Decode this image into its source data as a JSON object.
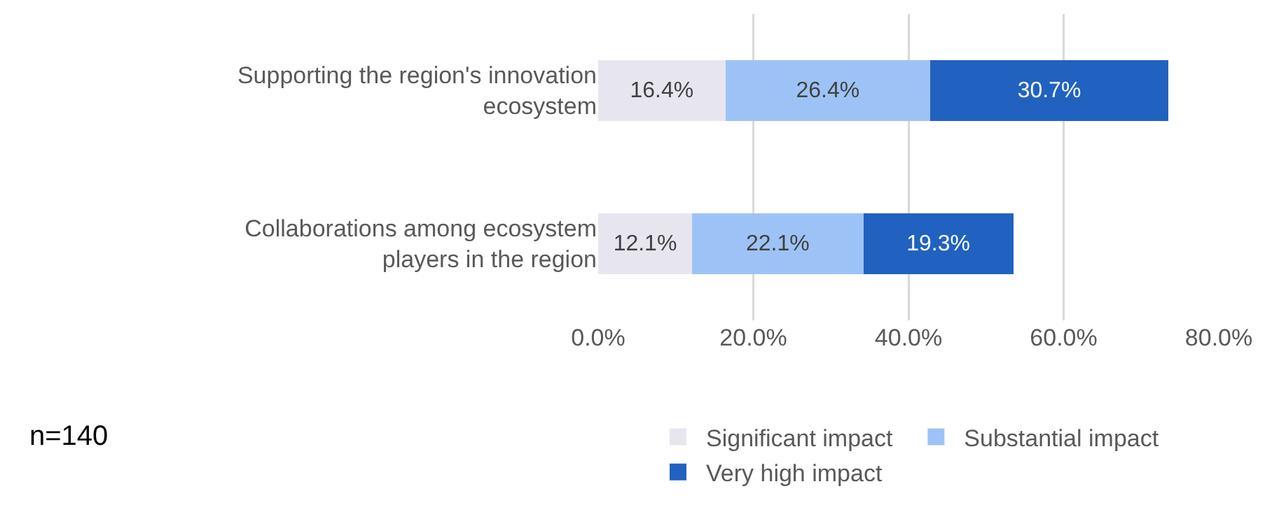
{
  "chart_data": {
    "type": "bar",
    "orientation": "horizontal",
    "stacked": true,
    "categories": [
      "Supporting the region's innovation ecosystem",
      "Collaborations among ecosystem players in the region"
    ],
    "series": [
      {
        "name": "Significant impact",
        "color": "#e7e6ef",
        "values": [
          16.4,
          12.1
        ],
        "value_labels": [
          "16.4%",
          "12.1%"
        ]
      },
      {
        "name": "Substantial impact",
        "color": "#9dc3f6",
        "values": [
          26.4,
          22.1
        ],
        "value_labels": [
          "26.4%",
          "22.1%"
        ]
      },
      {
        "name": "Very high impact",
        "color": "#2162c0",
        "values": [
          30.7,
          19.3
        ],
        "value_labels": [
          "30.7%",
          "19.3%"
        ]
      }
    ],
    "xlim": [
      0,
      80
    ],
    "xticks": [
      {
        "value": 0,
        "label": "0.0%"
      },
      {
        "value": 20,
        "label": "20.0%"
      },
      {
        "value": 40,
        "label": "40.0%"
      },
      {
        "value": 60,
        "label": "60.0%"
      },
      {
        "value": 80,
        "label": "80.0%"
      }
    ],
    "grid": "x",
    "legend": "bottom",
    "annotations": [
      "n=140"
    ]
  }
}
